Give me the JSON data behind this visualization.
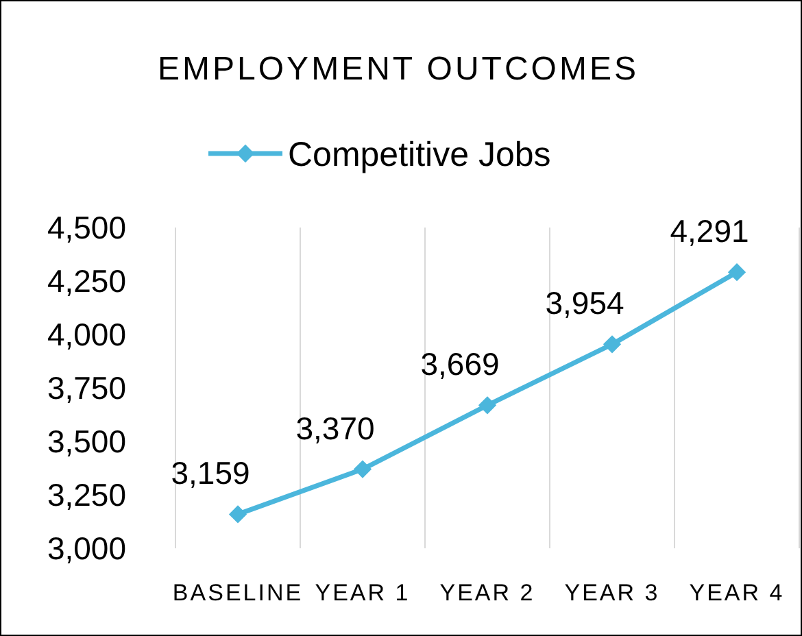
{
  "chart_data": {
    "type": "line",
    "title": "EMPLOYMENT OUTCOMES",
    "categories": [
      "BASELINE",
      "YEAR 1",
      "YEAR 2",
      "YEAR 3",
      "YEAR 4"
    ],
    "series": [
      {
        "name": "Competitive Jobs",
        "color": "#4bb6dc",
        "values": [
          3159,
          3370,
          3669,
          3954,
          4291
        ],
        "value_labels": [
          "3,159",
          "3,370",
          "3,669",
          "3,954",
          "4,291"
        ]
      }
    ],
    "ylim": [
      3000,
      4500
    ],
    "yticks": [
      {
        "value": 3000,
        "label": "3,000"
      },
      {
        "value": 3250,
        "label": "3,250"
      },
      {
        "value": 3500,
        "label": "3,500"
      },
      {
        "value": 3750,
        "label": "3,750"
      },
      {
        "value": 4000,
        "label": "4,000"
      },
      {
        "value": 4250,
        "label": "4,250"
      },
      {
        "value": 4500,
        "label": "4,500"
      }
    ],
    "grid": "x",
    "legend": "top",
    "marker": "diamond",
    "line_style": "solid"
  }
}
